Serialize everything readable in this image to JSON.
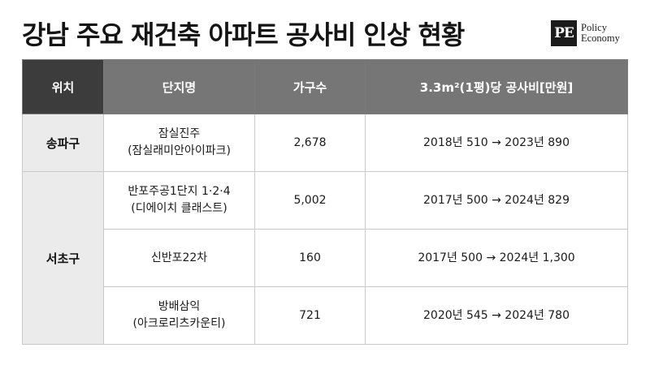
{
  "title": "강남 주요 재건축 아파트 공사비 인상 현황",
  "logo": {
    "mark": "PE",
    "line1": "Policy",
    "line2": "Economy"
  },
  "table": {
    "headers": [
      "위치",
      "단지명",
      "가구수",
      "3.3m²(1평)당 공사비[만원]"
    ],
    "groups": [
      {
        "location": "송파구",
        "rows": [
          {
            "name_line1": "잠실진주",
            "name_line2": "(잠실래미안아이파크)",
            "households": "2,678",
            "cost": "2018년 510 → 2023년 890"
          }
        ]
      },
      {
        "location": "서초구",
        "rows": [
          {
            "name_line1": "반포주공1단지 1·2·4",
            "name_line2": "(디에이치 클래스트)",
            "households": "5,002",
            "cost": "2017년 500 → 2024년 829"
          },
          {
            "name_line1": "신반포22차",
            "name_line2": "",
            "households": "160",
            "cost": "2017년 500 → 2024년 1,300"
          },
          {
            "name_line1": "방배삼익",
            "name_line2": "(아크로리츠카운티)",
            "households": "721",
            "cost": "2020년 545 → 2024년 780"
          }
        ]
      }
    ]
  }
}
